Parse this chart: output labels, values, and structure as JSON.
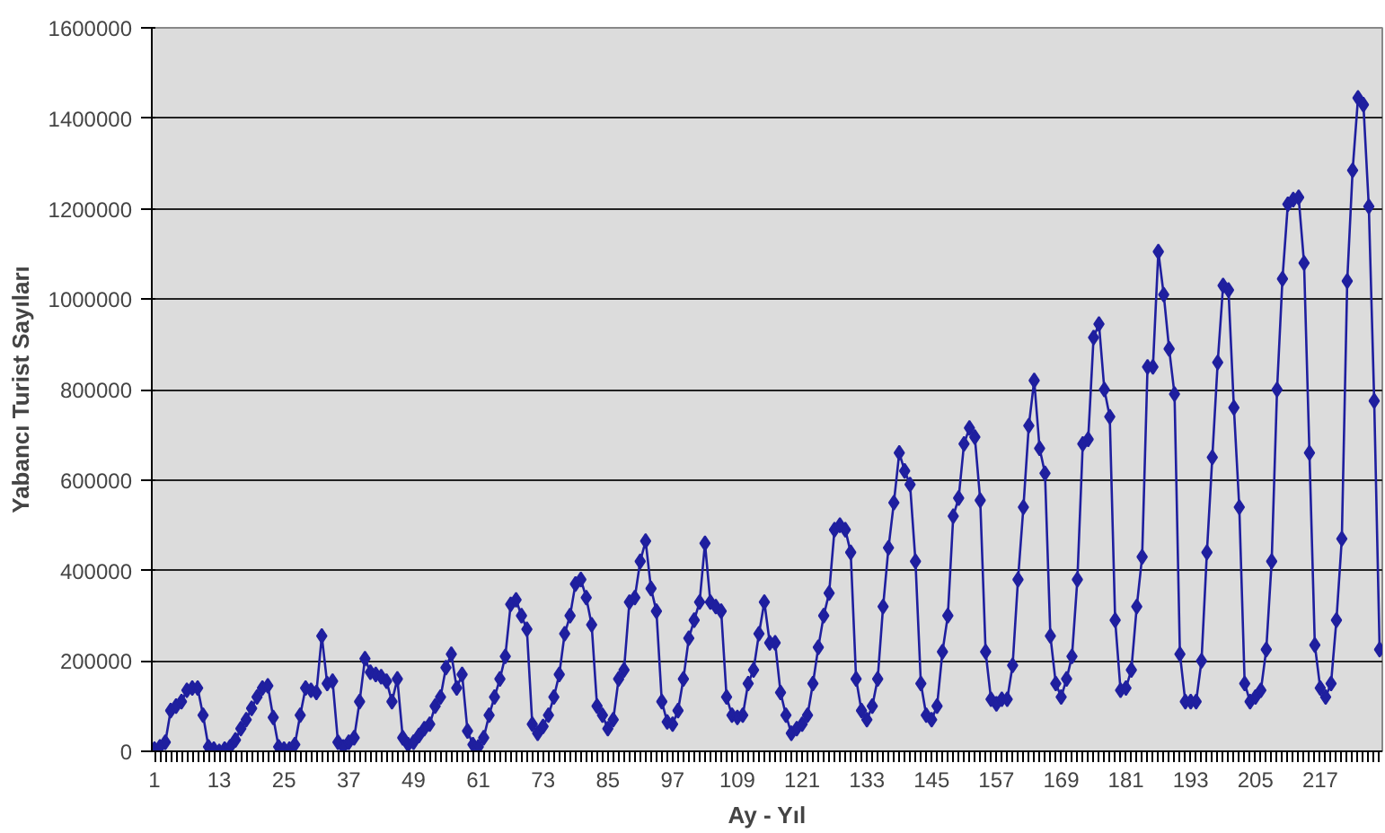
{
  "chart_data": {
    "type": "line",
    "xlabel": "Ay - Yıl",
    "ylabel": "Yabancı Turist Sayıları",
    "categories": [
      "1",
      null,
      null,
      null,
      null,
      null,
      null,
      null,
      null,
      null,
      null,
      null,
      "13",
      null,
      null,
      null,
      null,
      null,
      null,
      null,
      null,
      null,
      null,
      null,
      "25",
      null,
      null,
      null,
      null,
      null,
      null,
      null,
      null,
      null,
      null,
      null,
      "37",
      null,
      null,
      null,
      null,
      null,
      null,
      null,
      null,
      null,
      null,
      null,
      "49",
      null,
      null,
      null,
      null,
      null,
      null,
      null,
      null,
      null,
      null,
      null,
      "61",
      null,
      null,
      null,
      null,
      null,
      null,
      null,
      null,
      null,
      null,
      null,
      "73",
      null,
      null,
      null,
      null,
      null,
      null,
      null,
      null,
      null,
      null,
      null,
      "85",
      null,
      null,
      null,
      null,
      null,
      null,
      null,
      null,
      null,
      null,
      null,
      "97",
      null,
      null,
      null,
      null,
      null,
      null,
      null,
      null,
      null,
      null,
      null,
      "109",
      null,
      null,
      null,
      null,
      null,
      null,
      null,
      null,
      null,
      null,
      null,
      "121",
      null,
      null,
      null,
      null,
      null,
      null,
      null,
      null,
      null,
      null,
      null,
      "133",
      null,
      null,
      null,
      null,
      null,
      null,
      null,
      null,
      null,
      null,
      null,
      "145",
      null,
      null,
      null,
      null,
      null,
      null,
      null,
      null,
      null,
      null,
      null,
      "157",
      null,
      null,
      null,
      null,
      null,
      null,
      null,
      null,
      null,
      null,
      null,
      "169",
      null,
      null,
      null,
      null,
      null,
      null,
      null,
      null,
      null,
      null,
      null,
      "181",
      null,
      null,
      null,
      null,
      null,
      null,
      null,
      null,
      null,
      null,
      null,
      "193",
      null,
      null,
      null,
      null,
      null,
      null,
      null,
      null,
      null,
      null,
      null,
      "205",
      null,
      null,
      null,
      null,
      null,
      null,
      null,
      null,
      null,
      null,
      null,
      "217",
      null,
      null,
      null,
      null,
      null,
      null,
      null,
      null,
      null,
      null,
      null
    ],
    "series": [
      {
        "color": "#1f1f9f",
        "values": [
          5000,
          10000,
          20000,
          90000,
          100000,
          110000,
          135000,
          140000,
          140000,
          80000,
          10000,
          5000,
          0,
          5000,
          10000,
          25000,
          50000,
          70000,
          95000,
          120000,
          140000,
          145000,
          75000,
          10000,
          5000,
          5000,
          15000,
          80000,
          140000,
          135000,
          130000,
          255000,
          150000,
          155000,
          20000,
          10000,
          20000,
          30000,
          110000,
          205000,
          175000,
          170000,
          165000,
          155000,
          110000,
          160000,
          30000,
          15000,
          20000,
          35000,
          50000,
          60000,
          100000,
          120000,
          185000,
          215000,
          140000,
          170000,
          45000,
          15000,
          10000,
          30000,
          80000,
          120000,
          160000,
          210000,
          325000,
          335000,
          300000,
          270000,
          60000,
          40000,
          55000,
          80000,
          120000,
          170000,
          260000,
          300000,
          370000,
          380000,
          340000,
          280000,
          100000,
          80000,
          50000,
          70000,
          160000,
          180000,
          330000,
          340000,
          420000,
          465000,
          360000,
          310000,
          110000,
          65000,
          60000,
          90000,
          160000,
          250000,
          290000,
          330000,
          460000,
          330000,
          320000,
          310000,
          120000,
          80000,
          75000,
          80000,
          150000,
          180000,
          260000,
          330000,
          240000,
          240000,
          130000,
          80000,
          40000,
          50000,
          60000,
          80000,
          150000,
          230000,
          300000,
          350000,
          490000,
          500000,
          490000,
          440000,
          160000,
          90000,
          70000,
          100000,
          160000,
          320000,
          450000,
          550000,
          660000,
          620000,
          590000,
          420000,
          150000,
          80000,
          70000,
          100000,
          220000,
          300000,
          520000,
          560000,
          680000,
          715000,
          695000,
          555000,
          220000,
          115000,
          105000,
          115000,
          115000,
          190000,
          380000,
          540000,
          720000,
          820000,
          670000,
          615000,
          255000,
          150000,
          120000,
          160000,
          210000,
          380000,
          680000,
          690000,
          915000,
          945000,
          800000,
          740000,
          290000,
          135000,
          140000,
          180000,
          320000,
          430000,
          850000,
          850000,
          1105000,
          1010000,
          890000,
          790000,
          215000,
          110000,
          110000,
          110000,
          200000,
          440000,
          650000,
          860000,
          1030000,
          1020000,
          760000,
          540000,
          150000,
          110000,
          120000,
          135000,
          225000,
          420000,
          800000,
          1045000,
          1210000,
          1220000,
          1225000,
          1080000,
          660000,
          235000,
          140000,
          120000,
          150000,
          290000,
          470000,
          1040000,
          1285000,
          1445000,
          1430000,
          1205000,
          775000,
          225000
        ]
      }
    ],
    "ylim": [
      0,
      1600000
    ],
    "yticks": [
      0,
      200000,
      400000,
      600000,
      800000,
      1000000,
      1200000,
      1400000,
      1600000
    ],
    "grid": "y",
    "marker": "diamond",
    "line_style": "solid"
  }
}
